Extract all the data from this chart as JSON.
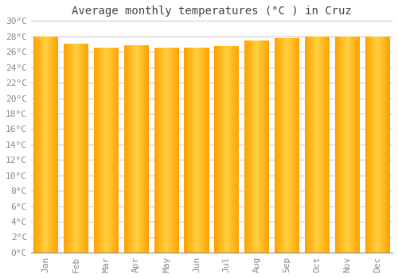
{
  "title": "Average monthly temperatures (°C ) in Cruz",
  "months": [
    "Jan",
    "Feb",
    "Mar",
    "Apr",
    "May",
    "Jun",
    "Jul",
    "Aug",
    "Sep",
    "Oct",
    "Nov",
    "Dec"
  ],
  "values": [
    28.0,
    27.0,
    26.5,
    26.8,
    26.5,
    26.5,
    26.7,
    27.5,
    27.8,
    28.0,
    28.0,
    28.0
  ],
  "bar_color_center": "#FFD040",
  "bar_color_edge": "#FFA000",
  "background_color": "#FFFFFF",
  "plot_bg_color": "#FFFFFF",
  "grid_color": "#CCCCCC",
  "ylim": [
    0,
    30
  ],
  "ytick_step": 2,
  "title_fontsize": 10,
  "tick_fontsize": 8,
  "tick_color": "#888888",
  "font_family": "monospace",
  "bar_width": 0.82
}
